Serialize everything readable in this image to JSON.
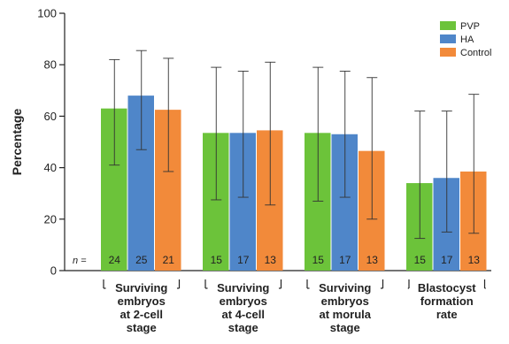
{
  "chart_data": {
    "type": "bar",
    "ylabel": "Percentage",
    "ylim": [
      0,
      100
    ],
    "yticks": [
      0,
      20,
      40,
      60,
      80,
      100
    ],
    "grid": false,
    "legend_position": "top-right",
    "n_prefix": "n =",
    "categories": [
      [
        "Surviving",
        "embryos",
        "at 2-cell",
        "stage"
      ],
      [
        "Surviving",
        "embryos",
        "at 4-cell",
        "stage"
      ],
      [
        "Surviving",
        "embryos",
        "at morula",
        "stage"
      ],
      [
        "Blastocyst",
        "formation",
        "rate"
      ]
    ],
    "series": [
      {
        "name": "PVP",
        "color": "#6cc33a",
        "values": [
          63,
          53.5,
          53.5,
          34
        ],
        "error_high": [
          82,
          79,
          79,
          62
        ],
        "error_low": [
          41,
          27.5,
          27,
          12.5
        ],
        "n": [
          "24",
          "15",
          "15",
          "15"
        ]
      },
      {
        "name": "HA",
        "color": "#4f86c9",
        "values": [
          68,
          53.5,
          53,
          36
        ],
        "error_high": [
          85.5,
          77.5,
          77.5,
          62
        ],
        "error_low": [
          47,
          28.5,
          28.5,
          15
        ],
        "n": [
          "25",
          "17",
          "17",
          "17"
        ]
      },
      {
        "name": "Control",
        "color": "#f28a3a",
        "values": [
          62.5,
          54.5,
          46.5,
          38.5
        ],
        "error_high": [
          82.5,
          81,
          75,
          68.5
        ],
        "error_low": [
          38.5,
          25.5,
          20,
          14.5
        ],
        "n": [
          "21",
          "13",
          "13",
          "13"
        ]
      }
    ]
  }
}
